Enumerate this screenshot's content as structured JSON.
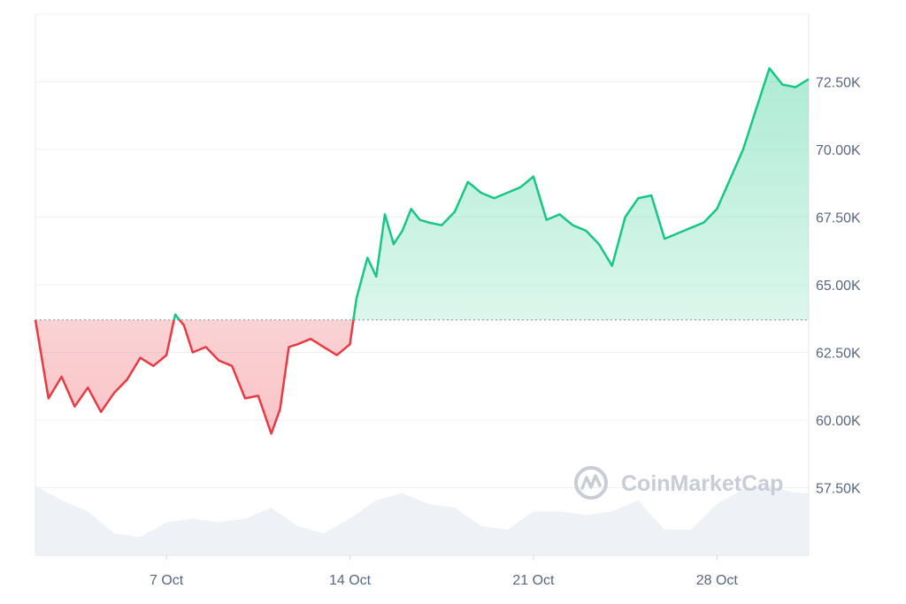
{
  "chart_data": {
    "type": "area",
    "title": "",
    "xlabel": "",
    "ylabel": "",
    "x_ticks": [
      "7 Oct",
      "14 Oct",
      "21 Oct",
      "28 Oct"
    ],
    "y_ticks": [
      "57.50K",
      "60.00K",
      "62.50K",
      "65.00K",
      "67.50K",
      "70.00K",
      "72.50K"
    ],
    "y_tick_values": [
      57500,
      60000,
      62500,
      65000,
      67500,
      70000,
      72500
    ],
    "ylim": [
      55000,
      75000
    ],
    "xlim": [
      "2024-10-02",
      "2024-10-31T12:00"
    ],
    "baseline": 63700,
    "colors": {
      "up": "#16c784",
      "down": "#ea3943",
      "grid": "#eff2f5",
      "volume": "#eef1f5"
    },
    "grid": true,
    "series": [
      {
        "values": [
          [
            "2024-10-02",
            63700
          ],
          [
            "2024-10-02T12:00",
            60800
          ],
          [
            "2024-10-03",
            61600
          ],
          [
            "2024-10-03T12:00",
            60500
          ],
          [
            "2024-10-04",
            61200
          ],
          [
            "2024-10-04T12:00",
            60300
          ],
          [
            "2024-10-05",
            61000
          ],
          [
            "2024-10-05T12:00",
            61500
          ],
          [
            "2024-10-06",
            62300
          ],
          [
            "2024-10-06T12:00",
            62000
          ],
          [
            "2024-10-07",
            62400
          ],
          [
            "2024-10-07T08:00",
            63900
          ],
          [
            "2024-10-07T16:00",
            63500
          ],
          [
            "2024-10-08",
            62500
          ],
          [
            "2024-10-08T12:00",
            62700
          ],
          [
            "2024-10-09",
            62200
          ],
          [
            "2024-10-09T12:00",
            62000
          ],
          [
            "2024-10-10",
            60800
          ],
          [
            "2024-10-10T12:00",
            60900
          ],
          [
            "2024-10-11",
            59500
          ],
          [
            "2024-10-11T08:00",
            60400
          ],
          [
            "2024-10-11T16:00",
            62700
          ],
          [
            "2024-10-12",
            62800
          ],
          [
            "2024-10-12T12:00",
            63000
          ],
          [
            "2024-10-13",
            62700
          ],
          [
            "2024-10-13T12:00",
            62400
          ],
          [
            "2024-10-14",
            62800
          ],
          [
            "2024-10-14T06:00",
            64500
          ],
          [
            "2024-10-14T16:00",
            66000
          ],
          [
            "2024-10-15",
            65300
          ],
          [
            "2024-10-15T08:00",
            67600
          ],
          [
            "2024-10-15T16:00",
            66500
          ],
          [
            "2024-10-16",
            67000
          ],
          [
            "2024-10-16T08:00",
            67800
          ],
          [
            "2024-10-16T16:00",
            67400
          ],
          [
            "2024-10-17",
            67300
          ],
          [
            "2024-10-17T12:00",
            67200
          ],
          [
            "2024-10-18",
            67700
          ],
          [
            "2024-10-18T12:00",
            68800
          ],
          [
            "2024-10-19",
            68400
          ],
          [
            "2024-10-19T12:00",
            68200
          ],
          [
            "2024-10-20",
            68400
          ],
          [
            "2024-10-20T12:00",
            68600
          ],
          [
            "2024-10-21",
            69000
          ],
          [
            "2024-10-21T12:00",
            67400
          ],
          [
            "2024-10-22",
            67600
          ],
          [
            "2024-10-22T12:00",
            67200
          ],
          [
            "2024-10-23",
            67000
          ],
          [
            "2024-10-23T12:00",
            66500
          ],
          [
            "2024-10-24",
            65700
          ],
          [
            "2024-10-24T12:00",
            67500
          ],
          [
            "2024-10-25",
            68200
          ],
          [
            "2024-10-25T12:00",
            68300
          ],
          [
            "2024-10-26",
            66700
          ],
          [
            "2024-10-26T12:00",
            66900
          ],
          [
            "2024-10-27",
            67100
          ],
          [
            "2024-10-27T12:00",
            67300
          ],
          [
            "2024-10-28",
            67800
          ],
          [
            "2024-10-28T12:00",
            68900
          ],
          [
            "2024-10-29",
            70000
          ],
          [
            "2024-10-29T12:00",
            71500
          ],
          [
            "2024-10-30",
            73000
          ],
          [
            "2024-10-30T12:00",
            72400
          ],
          [
            "2024-10-31",
            72300
          ],
          [
            "2024-10-31T12:00",
            72600
          ]
        ]
      }
    ],
    "volume": [
      [
        "2024-10-02",
        0.95
      ],
      [
        "2024-10-03",
        0.75
      ],
      [
        "2024-10-04",
        0.6
      ],
      [
        "2024-10-05",
        0.3
      ],
      [
        "2024-10-06",
        0.25
      ],
      [
        "2024-10-07",
        0.45
      ],
      [
        "2024-10-08",
        0.5
      ],
      [
        "2024-10-09",
        0.45
      ],
      [
        "2024-10-10",
        0.5
      ],
      [
        "2024-10-11",
        0.65
      ],
      [
        "2024-10-12",
        0.4
      ],
      [
        "2024-10-13",
        0.3
      ],
      [
        "2024-10-14",
        0.5
      ],
      [
        "2024-10-15",
        0.75
      ],
      [
        "2024-10-16",
        0.85
      ],
      [
        "2024-10-17",
        0.7
      ],
      [
        "2024-10-18",
        0.65
      ],
      [
        "2024-10-19",
        0.4
      ],
      [
        "2024-10-20",
        0.35
      ],
      [
        "2024-10-21",
        0.6
      ],
      [
        "2024-10-22",
        0.6
      ],
      [
        "2024-10-23",
        0.55
      ],
      [
        "2024-10-24",
        0.6
      ],
      [
        "2024-10-25",
        0.75
      ],
      [
        "2024-10-26",
        0.35
      ],
      [
        "2024-10-27",
        0.35
      ],
      [
        "2024-10-28",
        0.7
      ],
      [
        "2024-10-29",
        0.9
      ],
      [
        "2024-10-30",
        0.95
      ],
      [
        "2024-10-31",
        0.85
      ]
    ]
  },
  "watermark": {
    "text": "CoinMarketCap",
    "icon": "coinmarketcap-logo-icon"
  }
}
